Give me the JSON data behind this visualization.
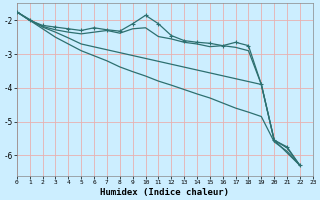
{
  "xlabel": "Humidex (Indice chaleur)",
  "xlim": [
    0,
    23
  ],
  "ylim": [
    -6.6,
    -1.5
  ],
  "yticks": [
    -2,
    -3,
    -4,
    -5,
    -6
  ],
  "xticks": [
    0,
    1,
    2,
    3,
    4,
    5,
    6,
    7,
    8,
    9,
    10,
    11,
    12,
    13,
    14,
    15,
    16,
    17,
    18,
    19,
    20,
    21,
    22,
    23
  ],
  "background_color": "#cceeff",
  "grid_color": "#e8b0b0",
  "line_color": "#2d7070",
  "curve_marker": {
    "x": [
      0,
      1,
      2,
      3,
      4,
      5,
      6,
      7,
      8,
      9,
      10,
      11,
      12,
      13,
      14,
      15,
      16,
      17,
      18,
      19,
      20,
      21,
      22
    ],
    "y": [
      -1.75,
      -2.0,
      -2.15,
      -2.2,
      -2.25,
      -2.3,
      -2.22,
      -2.28,
      -2.32,
      -2.1,
      -1.85,
      -2.1,
      -2.45,
      -2.6,
      -2.65,
      -2.68,
      -2.75,
      -2.65,
      -2.75,
      -3.9,
      -5.55,
      -5.75,
      -6.3
    ]
  },
  "curve2": {
    "x": [
      0,
      1,
      2,
      3,
      4,
      5,
      6,
      7,
      8,
      9,
      10,
      11,
      12,
      13,
      14,
      15,
      16,
      17,
      18,
      19,
      20,
      21,
      22
    ],
    "y": [
      -1.75,
      -2.0,
      -2.18,
      -2.28,
      -2.35,
      -2.4,
      -2.35,
      -2.3,
      -2.38,
      -2.25,
      -2.22,
      -2.48,
      -2.55,
      -2.65,
      -2.7,
      -2.78,
      -2.75,
      -2.8,
      -2.9,
      -3.9,
      -5.55,
      -5.78,
      -6.3
    ]
  },
  "curve3": {
    "x": [
      0,
      1,
      2,
      3,
      4,
      5,
      6,
      7,
      8,
      9,
      10,
      11,
      12,
      13,
      14,
      15,
      16,
      17,
      18,
      19,
      20,
      21,
      22
    ],
    "y": [
      -1.75,
      -2.0,
      -2.25,
      -2.5,
      -2.7,
      -2.9,
      -3.05,
      -3.2,
      -3.38,
      -3.52,
      -3.65,
      -3.8,
      -3.92,
      -4.05,
      -4.18,
      -4.3,
      -4.45,
      -4.6,
      -4.72,
      -4.85,
      -5.6,
      -5.88,
      -6.3
    ]
  },
  "curve4": {
    "x": [
      0,
      2,
      3,
      4,
      5,
      19,
      20,
      22
    ],
    "y": [
      -1.75,
      -2.2,
      -2.35,
      -2.52,
      -2.7,
      -3.9,
      -5.55,
      -6.3
    ]
  }
}
